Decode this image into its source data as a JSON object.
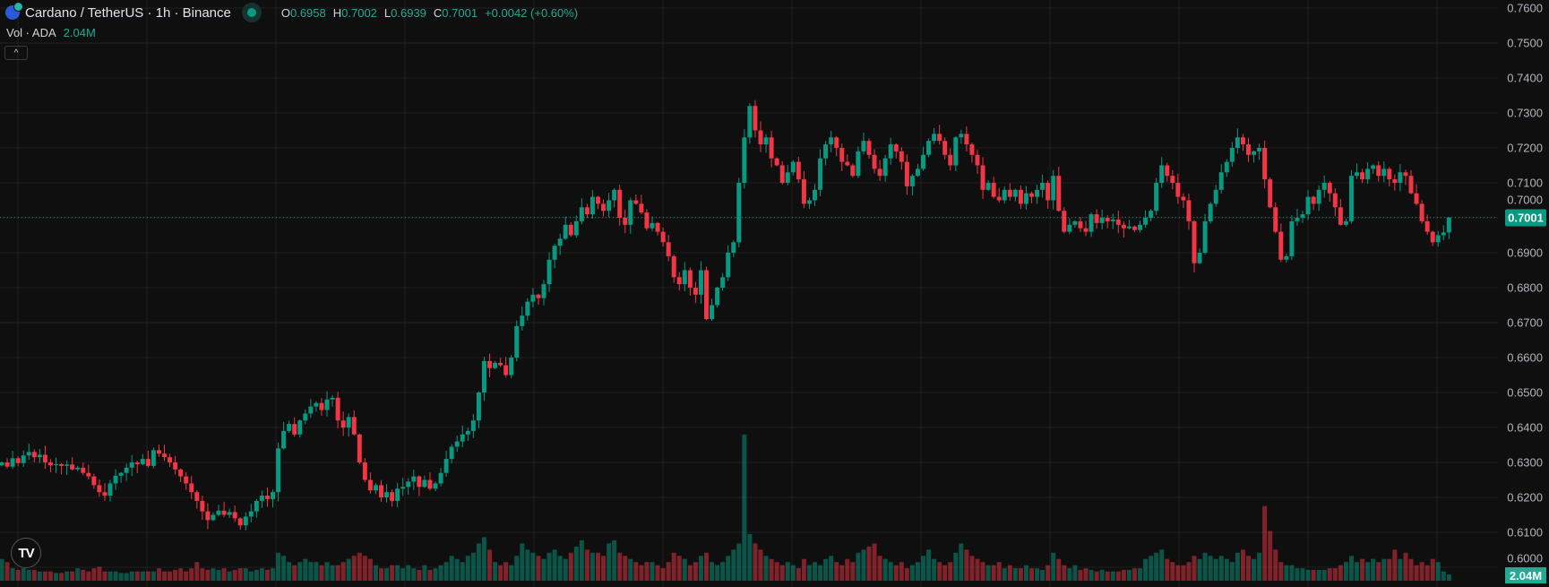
{
  "header": {
    "symbol_title": "Cardano / TetherUS · 1h · Binance",
    "ohlc": {
      "o_label": "O",
      "o": "0.6958",
      "h_label": "H",
      "h": "0.7002",
      "l_label": "L",
      "l": "0.6939",
      "c_label": "C",
      "c": "0.7001",
      "change": "+0.0042 (+0.60%)"
    },
    "vol_label": "Vol · ADA",
    "vol_value": "2.04M",
    "collapse_icon": "chevron-up-icon"
  },
  "colors": {
    "up": "#089981",
    "down": "#f23645",
    "background": "#0f0f0f",
    "grid": "#1f1f1f"
  },
  "current_price_label": "0.7001",
  "current_volume_label": "2.04M",
  "logo": "TV",
  "chart_data": {
    "type": "candlestick",
    "title": "Cardano / TetherUS · 1h · Binance",
    "ylim": [
      0.5985,
      0.761
    ],
    "grid": true,
    "y_ticks": [
      "0.7600",
      "0.7500",
      "0.7400",
      "0.7300",
      "0.7200",
      "0.7100",
      "0.7000",
      "0.6900",
      "0.6800",
      "0.6700",
      "0.6600",
      "0.6500",
      "0.6400",
      "0.6300",
      "0.6200",
      "0.6100",
      "0.6000"
    ],
    "last_open": 0.6958,
    "last_high": 0.7002,
    "last_low": 0.6939,
    "closes": [
      0.63,
      0.6288,
      0.6312,
      0.6298,
      0.632,
      0.633,
      0.6315,
      0.6322,
      0.63,
      0.6292,
      0.6295,
      0.629,
      0.6294,
      0.628,
      0.6285,
      0.627,
      0.626,
      0.6235,
      0.6215,
      0.6205,
      0.624,
      0.6262,
      0.627,
      0.6285,
      0.63,
      0.6295,
      0.631,
      0.629,
      0.6335,
      0.6325,
      0.6315,
      0.63,
      0.628,
      0.626,
      0.624,
      0.6215,
      0.619,
      0.616,
      0.6135,
      0.615,
      0.6162,
      0.615,
      0.6158,
      0.614,
      0.612,
      0.6145,
      0.616,
      0.619,
      0.6205,
      0.6195,
      0.6215,
      0.634,
      0.639,
      0.641,
      0.638,
      0.642,
      0.644,
      0.646,
      0.647,
      0.645,
      0.648,
      0.6485,
      0.642,
      0.64,
      0.643,
      0.638,
      0.63,
      0.625,
      0.622,
      0.6235,
      0.62,
      0.6215,
      0.619,
      0.6225,
      0.623,
      0.6245,
      0.626,
      0.623,
      0.625,
      0.6225,
      0.624,
      0.627,
      0.631,
      0.6345,
      0.636,
      0.638,
      0.639,
      0.642,
      0.65,
      0.659,
      0.657,
      0.6585,
      0.6578,
      0.655,
      0.66,
      0.669,
      0.672,
      0.676,
      0.678,
      0.677,
      0.681,
      0.688,
      0.692,
      0.694,
      0.698,
      0.695,
      0.699,
      0.703,
      0.701,
      0.706,
      0.704,
      0.702,
      0.705,
      0.708,
      0.7,
      0.698,
      0.705,
      0.704,
      0.7015,
      0.697,
      0.6985,
      0.696,
      0.693,
      0.689,
      0.683,
      0.681,
      0.685,
      0.68,
      0.678,
      0.685,
      0.671,
      0.675,
      0.68,
      0.683,
      0.69,
      0.693,
      0.71,
      0.723,
      0.732,
      0.725,
      0.721,
      0.723,
      0.717,
      0.715,
      0.71,
      0.713,
      0.716,
      0.711,
      0.704,
      0.705,
      0.708,
      0.717,
      0.721,
      0.723,
      0.72,
      0.716,
      0.715,
      0.712,
      0.719,
      0.722,
      0.718,
      0.714,
      0.712,
      0.717,
      0.721,
      0.719,
      0.716,
      0.709,
      0.712,
      0.714,
      0.718,
      0.722,
      0.724,
      0.722,
      0.718,
      0.715,
      0.723,
      0.724,
      0.721,
      0.718,
      0.715,
      0.708,
      0.71,
      0.706,
      0.705,
      0.708,
      0.706,
      0.708,
      0.704,
      0.707,
      0.706,
      0.708,
      0.71,
      0.705,
      0.712,
      0.702,
      0.696,
      0.698,
      0.699,
      0.697,
      0.696,
      0.701,
      0.6985,
      0.7,
      0.699,
      0.6995,
      0.698,
      0.697,
      0.6975,
      0.6965,
      0.698,
      0.7,
      0.702,
      0.71,
      0.715,
      0.712,
      0.71,
      0.706,
      0.705,
      0.699,
      0.687,
      0.69,
      0.699,
      0.704,
      0.708,
      0.713,
      0.716,
      0.72,
      0.723,
      0.721,
      0.718,
      0.719,
      0.72,
      0.711,
      0.703,
      0.696,
      0.688,
      0.689,
      0.699,
      0.7,
      0.701,
      0.706,
      0.704,
      0.708,
      0.71,
      0.707,
      0.703,
      0.698,
      0.699,
      0.712,
      0.713,
      0.711,
      0.714,
      0.715,
      0.712,
      0.714,
      0.711,
      0.71,
      0.713,
      0.712,
      0.707,
      0.704,
      0.699,
      0.696,
      0.693,
      0.695,
      0.6958,
      0.7001
    ],
    "volumes_millions": [
      7,
      6,
      4,
      3.5,
      4,
      3.5,
      3.5,
      3,
      3,
      3,
      2.5,
      2.5,
      3,
      3,
      4,
      3.5,
      3,
      4,
      4.5,
      3,
      3,
      3,
      2.5,
      2.5,
      3,
      3,
      3,
      3,
      3,
      4,
      3,
      3,
      3.5,
      4,
      3,
      4,
      6,
      4,
      3.5,
      4,
      3.5,
      4,
      3,
      3.5,
      4,
      4,
      3,
      3.5,
      4,
      3.5,
      4,
      9,
      8,
      6,
      5,
      6,
      7,
      6,
      6,
      5,
      6,
      5,
      5,
      6,
      7,
      8,
      9,
      8,
      7,
      5,
      4,
      4,
      5,
      5,
      4,
      5,
      4,
      3.5,
      5,
      3.5,
      4,
      5,
      6,
      8,
      7,
      6,
      8,
      9,
      12,
      14,
      10,
      6,
      5,
      6,
      5,
      8,
      12,
      10,
      9,
      8,
      7,
      9,
      10,
      8,
      7,
      9,
      11,
      13,
      10,
      9,
      9,
      8,
      12,
      13,
      9,
      8,
      7,
      6,
      5,
      6,
      6,
      5,
      4,
      6,
      9,
      8,
      7,
      5,
      6,
      8,
      9,
      6,
      5,
      6,
      8,
      10,
      12,
      47,
      15,
      12,
      10,
      8,
      7,
      6,
      5,
      6,
      5,
      4,
      7,
      5,
      6,
      5,
      7,
      8,
      6,
      5,
      7,
      6,
      9,
      10,
      11,
      12,
      8,
      7,
      6,
      5,
      6,
      4,
      5,
      6,
      8,
      10,
      7,
      6,
      5,
      6,
      9,
      12,
      10,
      8,
      7,
      6,
      5,
      5,
      6,
      4,
      5,
      4,
      4,
      5,
      4,
      4,
      3.5,
      5,
      9,
      7,
      5,
      4,
      5,
      3.5,
      4,
      3.5,
      3,
      3.5,
      3,
      3,
      3,
      3.5,
      3.5,
      4,
      4,
      7,
      8,
      9,
      10,
      7,
      6,
      5,
      5,
      6,
      8,
      7,
      9,
      8,
      7,
      8,
      7,
      6,
      9,
      10,
      8,
      7,
      9,
      24,
      16,
      10,
      6,
      5,
      5,
      4,
      4,
      3.5,
      3.5,
      3.5,
      3.5,
      4,
      4,
      5,
      6,
      8,
      6,
      7,
      6,
      7,
      6,
      7,
      7,
      10,
      7,
      9,
      7,
      5,
      6,
      5,
      7,
      6,
      3,
      2.04
    ]
  }
}
